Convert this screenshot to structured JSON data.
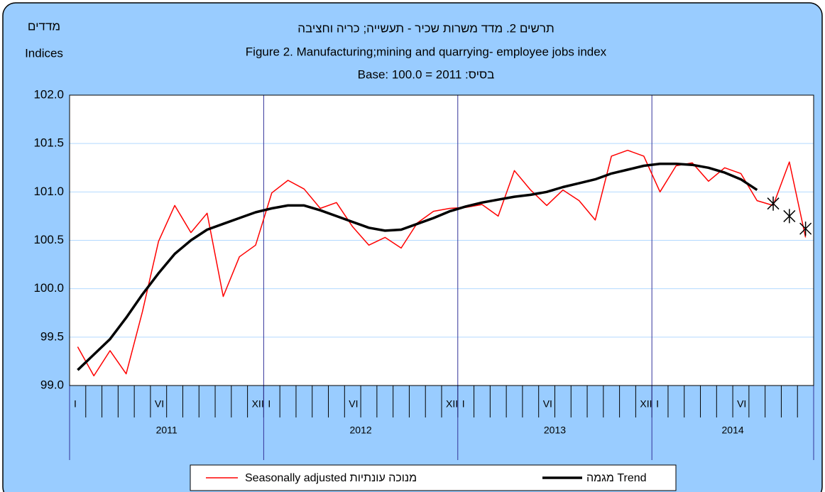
{
  "chart_data": {
    "type": "line",
    "title_he": "תרשים 2. מדד משרות שכיר - תעשייה; כריה וחציבה",
    "title": "Figure 2. Manufacturing;mining and quarrying- employee jobs index",
    "subtitle": "Base: 100.0 = 2011 :בסיס",
    "y_label_he": "מדדים",
    "y_label": "Indices",
    "categories": [
      "I",
      null,
      null,
      null,
      null,
      "VI",
      null,
      null,
      null,
      null,
      null,
      "XII",
      "I",
      null,
      null,
      null,
      null,
      "VI",
      null,
      null,
      null,
      null,
      null,
      "XII",
      "I",
      null,
      null,
      null,
      null,
      "VI",
      null,
      null,
      null,
      null,
      null,
      "XII",
      "I",
      null,
      null,
      null,
      null,
      "VI",
      null,
      null,
      null,
      null
    ],
    "years": [
      "2011",
      "2012",
      "2013",
      "2014"
    ],
    "series": [
      {
        "name": "Seasonally adjusted מנוכה עונתיות",
        "color": "#ff0000",
        "values": [
          99.4,
          99.1,
          99.36,
          99.12,
          99.76,
          100.49,
          100.86,
          100.58,
          100.78,
          99.92,
          100.33,
          100.45,
          100.99,
          101.12,
          101.03,
          100.83,
          100.89,
          100.64,
          100.45,
          100.53,
          100.42,
          100.68,
          100.8,
          100.83,
          100.84,
          100.87,
          100.75,
          101.22,
          101.02,
          100.86,
          101.02,
          100.91,
          100.71,
          101.37,
          101.43,
          101.37,
          101.0,
          101.27,
          101.3,
          101.11,
          101.25,
          101.19,
          100.91,
          100.86,
          101.31,
          100.53
        ]
      },
      {
        "name": "מגמה Trend",
        "color": "#000000",
        "values": [
          99.16,
          99.32,
          99.48,
          99.7,
          99.94,
          100.16,
          100.36,
          100.5,
          100.61,
          100.67,
          100.73,
          100.79,
          100.83,
          100.86,
          100.86,
          100.81,
          100.75,
          100.69,
          100.63,
          100.6,
          100.61,
          100.67,
          100.73,
          100.8,
          100.85,
          100.89,
          100.92,
          100.95,
          100.97,
          101.0,
          101.05,
          101.09,
          101.13,
          101.19,
          101.23,
          101.27,
          101.29,
          101.29,
          101.28,
          101.25,
          101.2,
          101.13,
          101.02,
          null,
          null,
          null
        ]
      },
      {
        "color": "#000000",
        "values": [
          null,
          null,
          null,
          null,
          null,
          null,
          null,
          null,
          null,
          null,
          null,
          null,
          null,
          null,
          null,
          null,
          null,
          null,
          null,
          null,
          null,
          null,
          null,
          null,
          null,
          null,
          null,
          null,
          null,
          null,
          null,
          null,
          null,
          null,
          null,
          null,
          null,
          null,
          null,
          null,
          null,
          null,
          null,
          100.88,
          100.75,
          100.62
        ]
      }
    ],
    "ylim": [
      99.0,
      102.0
    ],
    "yticks": [
      {
        "value": 99.0,
        "label": "99.0"
      },
      99.5,
      {
        "value": 100.0,
        "label": "100.0"
      },
      100.5,
      {
        "value": 101.0,
        "label": "101.0"
      },
      101.5,
      {
        "value": 102.0,
        "label": "102.0"
      }
    ],
    "grid": true
  }
}
